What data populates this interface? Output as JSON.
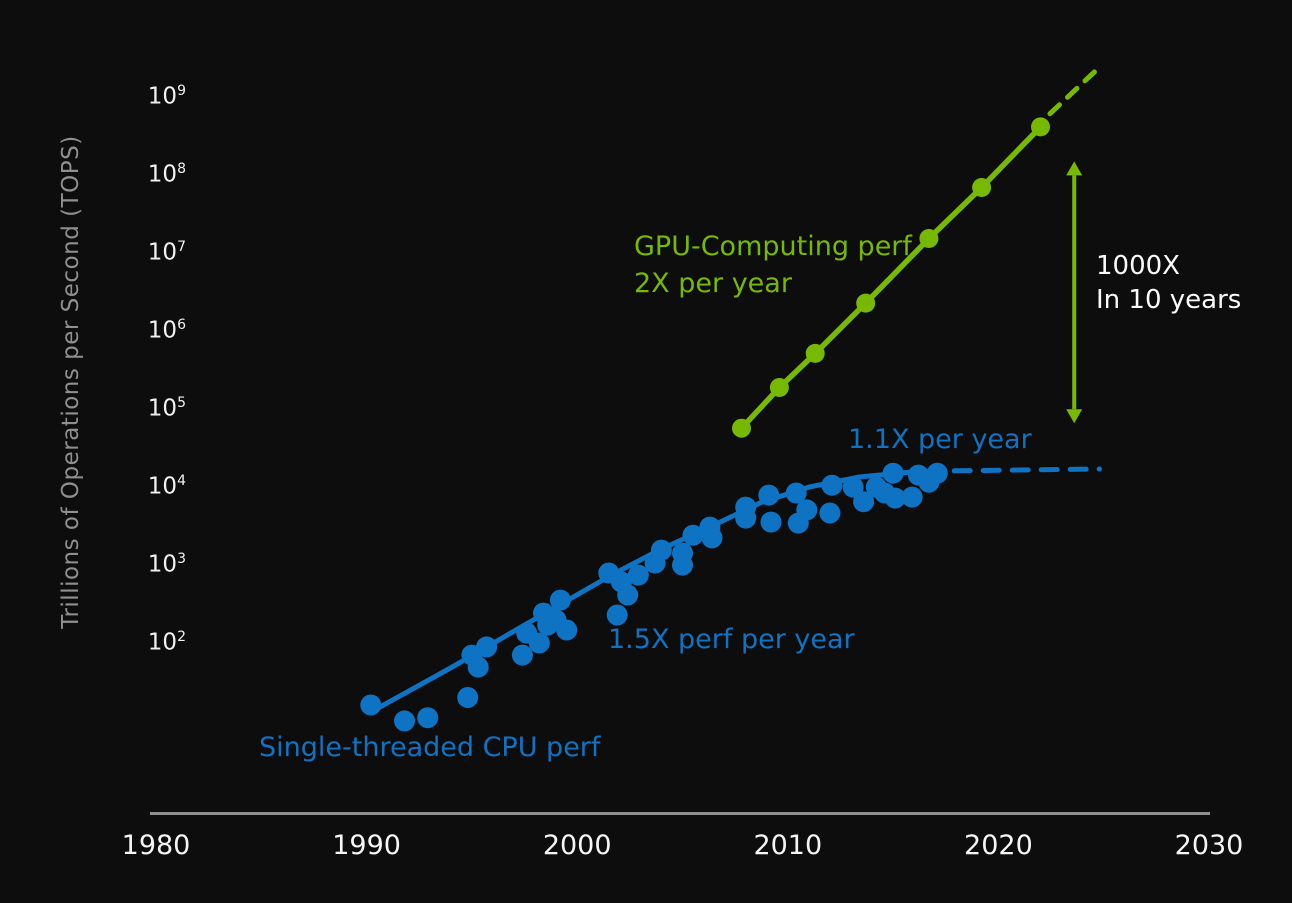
{
  "chart_data": {
    "type": "scatter",
    "title": "",
    "xlabel": "",
    "ylabel": "Trillions of Operations per Second (TOPS)",
    "background_color": "#0d0d0d",
    "grid": false,
    "legend": "none (inline annotations)",
    "x_axis": {
      "min": 1980,
      "max": 2030,
      "ticks": [
        1980,
        1990,
        2000,
        2010,
        2020,
        2030
      ]
    },
    "y_axis": {
      "scale": "log10",
      "tick_base": "10",
      "tick_exponents": [
        9,
        8,
        7,
        6,
        5,
        4,
        3,
        2
      ],
      "min_exp": 2,
      "max_exp": 9
    },
    "colors": {
      "gpu_green": "#76b900",
      "cpu_blue": "#0f73c4",
      "axis_gray": "#8f8f8f",
      "tick_white": "#f2f2f2"
    },
    "series": [
      {
        "name": "GPU-Computing perf",
        "type": "line+markers",
        "color": "#76b900",
        "stroke_width": 5.5,
        "marker_radius": 9.5,
        "points": [
          [
            2007.8,
            57000
          ],
          [
            2009.6,
            190000
          ],
          [
            2011.3,
            520000
          ],
          [
            2013.7,
            2300000
          ],
          [
            2016.7,
            15500000
          ],
          [
            2019.2,
            70000000
          ],
          [
            2022.0,
            420000000
          ]
        ]
      },
      {
        "name": "GPU-Computing perf projection (dashed)",
        "type": "line",
        "color": "#76b900",
        "stroke_width": 5,
        "dash": "13 11",
        "points": [
          [
            2022.45,
            620000000
          ],
          [
            2024.9,
            2600000000
          ]
        ]
      },
      {
        "name": "Single-threaded CPU perf",
        "type": "scatter",
        "color": "#0f73c4",
        "marker_radius": 10.5,
        "points": [
          [
            1990.2,
            16
          ],
          [
            1991.8,
            10
          ],
          [
            1992.9,
            11
          ],
          [
            1994.8,
            20
          ],
          [
            1995.0,
            70
          ],
          [
            1995.3,
            49
          ],
          [
            1995.7,
            89
          ],
          [
            1997.4,
            70
          ],
          [
            1997.6,
            134
          ],
          [
            1998.2,
            100
          ],
          [
            1998.4,
            242
          ],
          [
            1998.6,
            170
          ],
          [
            1999.0,
            197
          ],
          [
            1999.2,
            355
          ],
          [
            1999.5,
            147
          ],
          [
            2001.5,
            790
          ],
          [
            2001.9,
            229
          ],
          [
            2002.1,
            606
          ],
          [
            2002.4,
            413
          ],
          [
            2002.9,
            743
          ],
          [
            2003.7,
            1060
          ],
          [
            2004.0,
            1556
          ],
          [
            2005.0,
            1424
          ],
          [
            2005.0,
            1000
          ],
          [
            2005.5,
            2420
          ],
          [
            2006.3,
            3070
          ],
          [
            2006.4,
            2230
          ],
          [
            2008.0,
            5550
          ],
          [
            2008.0,
            4010
          ],
          [
            2009.1,
            7900
          ],
          [
            2009.2,
            3560
          ],
          [
            2010.4,
            8400
          ],
          [
            2010.5,
            3460
          ],
          [
            2010.9,
            5100
          ],
          [
            2012.0,
            4660
          ],
          [
            2012.1,
            10600
          ],
          [
            2013.1,
            10000
          ],
          [
            2013.6,
            6500
          ],
          [
            2014.2,
            10000
          ],
          [
            2014.6,
            8400
          ],
          [
            2015.0,
            15100
          ],
          [
            2015.1,
            7240
          ],
          [
            2015.9,
            7450
          ],
          [
            2016.2,
            14260
          ],
          [
            2016.7,
            11560
          ],
          [
            2017.1,
            15100
          ]
        ]
      },
      {
        "name": "Single-threaded CPU perf trend",
        "type": "line",
        "color": "#0f73c4",
        "stroke_width": 5,
        "points": [
          [
            1990.2,
            13
          ],
          [
            1994.0,
            48
          ],
          [
            1997.75,
            186
          ],
          [
            2001.55,
            724
          ],
          [
            2003.9,
            1560
          ],
          [
            2006.3,
            3080
          ],
          [
            2008.7,
            6290
          ],
          [
            2011.0,
            10000
          ],
          [
            2013.4,
            13500
          ],
          [
            2015.8,
            15600
          ],
          [
            2017.45,
            16100
          ]
        ]
      },
      {
        "name": "Single-threaded CPU perf projection (dashed)",
        "type": "line",
        "color": "#0f73c4",
        "stroke_width": 5,
        "dash": "16 13",
        "points": [
          [
            2017.9,
            16200
          ],
          [
            2024.8,
            17100
          ]
        ]
      }
    ],
    "arrow": {
      "x_year": 2023.6,
      "from_value": 100000,
      "to_value": 100000000,
      "color": "#76b900"
    },
    "annotations": {
      "gpu_perf": {
        "line1": "GPU-Computing perf",
        "line2": "2X per year"
      },
      "rate_recent": "1.1X per year",
      "rate_early": "1.5X perf per year",
      "cpu_perf": "Single-threaded CPU perf",
      "gap": {
        "line1": "1000X",
        "line2": "In 10 years"
      }
    }
  }
}
